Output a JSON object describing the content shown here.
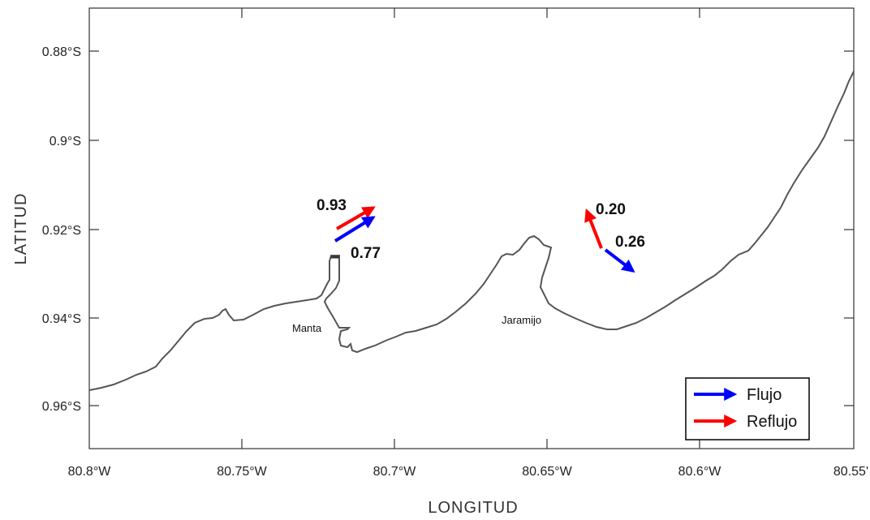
{
  "map": {
    "xlabel": "LONGITUD",
    "ylabel": "LATITUD",
    "x_ticks": [
      "80.8°W",
      "80.75°W",
      "80.7°W",
      "80.65°W",
      "80.6°W",
      "80.55'"
    ],
    "y_ticks": [
      "0.88°S",
      "0.9°S",
      "0.92°S",
      "0.94°S",
      "0.96°S"
    ],
    "places": {
      "manta": "Manta",
      "jaramijo": "Jaramijo"
    },
    "values": {
      "manta_reflujo": "0.93",
      "manta_flujo": "0.77",
      "jaramijo_reflujo": "0.20",
      "jaramijo_flujo": "0.26"
    },
    "legend": {
      "flujo": "Flujo",
      "reflujo": "Reflujo",
      "placement": "bottom-right"
    },
    "colors": {
      "flujo": "#0000ff",
      "reflujo": "#ff0000",
      "coast": "#555555"
    }
  }
}
